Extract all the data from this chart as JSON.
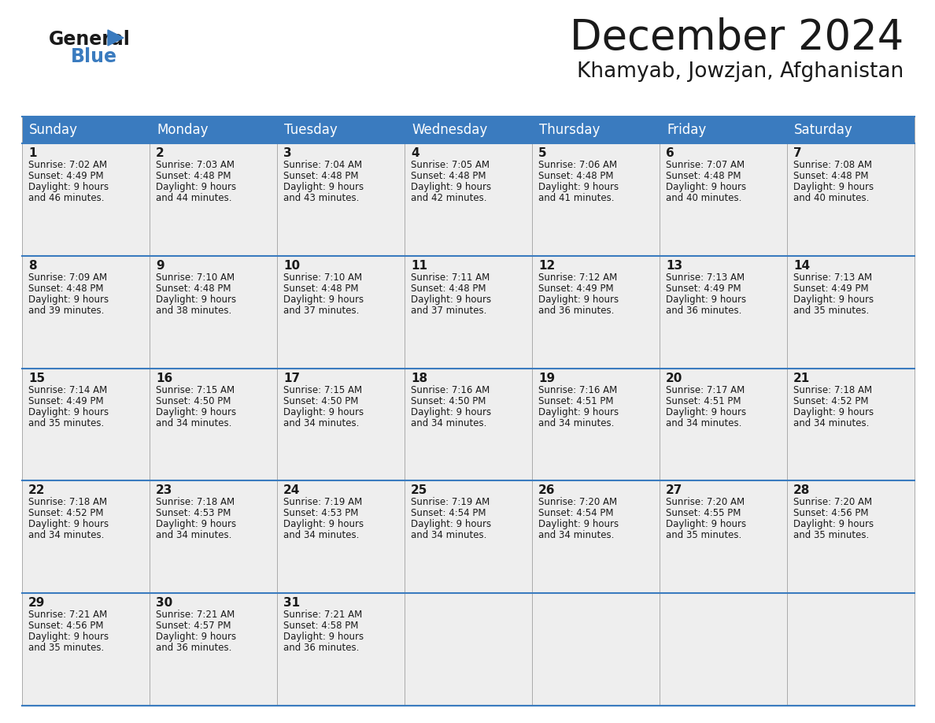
{
  "title": "December 2024",
  "subtitle": "Khamyab, Jowzjan, Afghanistan",
  "header_color": "#3a7bbf",
  "header_text_color": "#ffffff",
  "cell_bg": "#eeeeee",
  "border_color": "#3a7bbf",
  "days_of_week": [
    "Sunday",
    "Monday",
    "Tuesday",
    "Wednesday",
    "Thursday",
    "Friday",
    "Saturday"
  ],
  "weeks": [
    [
      {
        "day": 1,
        "sunrise": "7:02 AM",
        "sunset": "4:49 PM",
        "daylight_hrs": "9 hours",
        "daylight_min": "and 46 minutes."
      },
      {
        "day": 2,
        "sunrise": "7:03 AM",
        "sunset": "4:48 PM",
        "daylight_hrs": "9 hours",
        "daylight_min": "and 44 minutes."
      },
      {
        "day": 3,
        "sunrise": "7:04 AM",
        "sunset": "4:48 PM",
        "daylight_hrs": "9 hours",
        "daylight_min": "and 43 minutes."
      },
      {
        "day": 4,
        "sunrise": "7:05 AM",
        "sunset": "4:48 PM",
        "daylight_hrs": "9 hours",
        "daylight_min": "and 42 minutes."
      },
      {
        "day": 5,
        "sunrise": "7:06 AM",
        "sunset": "4:48 PM",
        "daylight_hrs": "9 hours",
        "daylight_min": "and 41 minutes."
      },
      {
        "day": 6,
        "sunrise": "7:07 AM",
        "sunset": "4:48 PM",
        "daylight_hrs": "9 hours",
        "daylight_min": "and 40 minutes."
      },
      {
        "day": 7,
        "sunrise": "7:08 AM",
        "sunset": "4:48 PM",
        "daylight_hrs": "9 hours",
        "daylight_min": "and 40 minutes."
      }
    ],
    [
      {
        "day": 8,
        "sunrise": "7:09 AM",
        "sunset": "4:48 PM",
        "daylight_hrs": "9 hours",
        "daylight_min": "and 39 minutes."
      },
      {
        "day": 9,
        "sunrise": "7:10 AM",
        "sunset": "4:48 PM",
        "daylight_hrs": "9 hours",
        "daylight_min": "and 38 minutes."
      },
      {
        "day": 10,
        "sunrise": "7:10 AM",
        "sunset": "4:48 PM",
        "daylight_hrs": "9 hours",
        "daylight_min": "and 37 minutes."
      },
      {
        "day": 11,
        "sunrise": "7:11 AM",
        "sunset": "4:48 PM",
        "daylight_hrs": "9 hours",
        "daylight_min": "and 37 minutes."
      },
      {
        "day": 12,
        "sunrise": "7:12 AM",
        "sunset": "4:49 PM",
        "daylight_hrs": "9 hours",
        "daylight_min": "and 36 minutes."
      },
      {
        "day": 13,
        "sunrise": "7:13 AM",
        "sunset": "4:49 PM",
        "daylight_hrs": "9 hours",
        "daylight_min": "and 36 minutes."
      },
      {
        "day": 14,
        "sunrise": "7:13 AM",
        "sunset": "4:49 PM",
        "daylight_hrs": "9 hours",
        "daylight_min": "and 35 minutes."
      }
    ],
    [
      {
        "day": 15,
        "sunrise": "7:14 AM",
        "sunset": "4:49 PM",
        "daylight_hrs": "9 hours",
        "daylight_min": "and 35 minutes."
      },
      {
        "day": 16,
        "sunrise": "7:15 AM",
        "sunset": "4:50 PM",
        "daylight_hrs": "9 hours",
        "daylight_min": "and 34 minutes."
      },
      {
        "day": 17,
        "sunrise": "7:15 AM",
        "sunset": "4:50 PM",
        "daylight_hrs": "9 hours",
        "daylight_min": "and 34 minutes."
      },
      {
        "day": 18,
        "sunrise": "7:16 AM",
        "sunset": "4:50 PM",
        "daylight_hrs": "9 hours",
        "daylight_min": "and 34 minutes."
      },
      {
        "day": 19,
        "sunrise": "7:16 AM",
        "sunset": "4:51 PM",
        "daylight_hrs": "9 hours",
        "daylight_min": "and 34 minutes."
      },
      {
        "day": 20,
        "sunrise": "7:17 AM",
        "sunset": "4:51 PM",
        "daylight_hrs": "9 hours",
        "daylight_min": "and 34 minutes."
      },
      {
        "day": 21,
        "sunrise": "7:18 AM",
        "sunset": "4:52 PM",
        "daylight_hrs": "9 hours",
        "daylight_min": "and 34 minutes."
      }
    ],
    [
      {
        "day": 22,
        "sunrise": "7:18 AM",
        "sunset": "4:52 PM",
        "daylight_hrs": "9 hours",
        "daylight_min": "and 34 minutes."
      },
      {
        "day": 23,
        "sunrise": "7:18 AM",
        "sunset": "4:53 PM",
        "daylight_hrs": "9 hours",
        "daylight_min": "and 34 minutes."
      },
      {
        "day": 24,
        "sunrise": "7:19 AM",
        "sunset": "4:53 PM",
        "daylight_hrs": "9 hours",
        "daylight_min": "and 34 minutes."
      },
      {
        "day": 25,
        "sunrise": "7:19 AM",
        "sunset": "4:54 PM",
        "daylight_hrs": "9 hours",
        "daylight_min": "and 34 minutes."
      },
      {
        "day": 26,
        "sunrise": "7:20 AM",
        "sunset": "4:54 PM",
        "daylight_hrs": "9 hours",
        "daylight_min": "and 34 minutes."
      },
      {
        "day": 27,
        "sunrise": "7:20 AM",
        "sunset": "4:55 PM",
        "daylight_hrs": "9 hours",
        "daylight_min": "and 35 minutes."
      },
      {
        "day": 28,
        "sunrise": "7:20 AM",
        "sunset": "4:56 PM",
        "daylight_hrs": "9 hours",
        "daylight_min": "and 35 minutes."
      }
    ],
    [
      {
        "day": 29,
        "sunrise": "7:21 AM",
        "sunset": "4:56 PM",
        "daylight_hrs": "9 hours",
        "daylight_min": "and 35 minutes."
      },
      {
        "day": 30,
        "sunrise": "7:21 AM",
        "sunset": "4:57 PM",
        "daylight_hrs": "9 hours",
        "daylight_min": "and 36 minutes."
      },
      {
        "day": 31,
        "sunrise": "7:21 AM",
        "sunset": "4:58 PM",
        "daylight_hrs": "9 hours",
        "daylight_min": "and 36 minutes."
      },
      null,
      null,
      null,
      null
    ]
  ],
  "logo_general_color": "#1a1a1a",
  "logo_blue_color": "#3a7bbf",
  "title_fontsize": 38,
  "subtitle_fontsize": 19,
  "header_fontsize": 12,
  "day_num_fontsize": 11,
  "cell_text_fontsize": 8.5
}
